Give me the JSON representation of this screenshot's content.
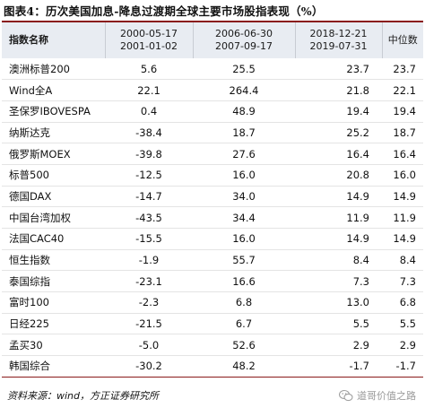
{
  "title": "图表4：历次美国加息-降息过渡期全球主要市场股指表现（%）",
  "headers": {
    "name": "指数名称",
    "periods": [
      {
        "start": "2000-05-17",
        "end": "2001-01-02"
      },
      {
        "start": "2006-06-30",
        "end": "2007-09-17"
      },
      {
        "start": "2018-12-21",
        "end": "2019-07-31"
      }
    ],
    "median": "中位数"
  },
  "rows": [
    {
      "name": "澳洲标普200",
      "v1": "5.6",
      "v2": "25.5",
      "v3": "23.7",
      "median": "23.7"
    },
    {
      "name": "Wind全A",
      "v1": "22.1",
      "v2": "264.4",
      "v3": "21.8",
      "median": "22.1"
    },
    {
      "name": "圣保罗IBOVESPA",
      "v1": "0.4",
      "v2": "48.9",
      "v3": "19.4",
      "median": "19.4"
    },
    {
      "name": "纳斯达克",
      "v1": "-38.4",
      "v2": "18.7",
      "v3": "25.2",
      "median": "18.7"
    },
    {
      "name": "俄罗斯MOEX",
      "v1": "-39.8",
      "v2": "27.6",
      "v3": "16.4",
      "median": "16.4"
    },
    {
      "name": "标普500",
      "v1": "-12.5",
      "v2": "16.0",
      "v3": "20.8",
      "median": "16.0"
    },
    {
      "name": "德国DAX",
      "v1": "-14.7",
      "v2": "34.0",
      "v3": "14.9",
      "median": "14.9"
    },
    {
      "name": "中国台湾加权",
      "v1": "-43.5",
      "v2": "34.4",
      "v3": "11.9",
      "median": "11.9"
    },
    {
      "name": "法国CAC40",
      "v1": "-15.5",
      "v2": "16.0",
      "v3": "14.9",
      "median": "14.9"
    },
    {
      "name": "恒生指数",
      "v1": "-1.9",
      "v2": "55.7",
      "v3": "8.4",
      "median": "8.4"
    },
    {
      "name": "泰国综指",
      "v1": "-23.1",
      "v2": "16.6",
      "v3": "7.3",
      "median": "7.3"
    },
    {
      "name": "富时100",
      "v1": "-2.3",
      "v2": "6.8",
      "v3": "13.0",
      "median": "6.8"
    },
    {
      "name": "日经225",
      "v1": "-21.5",
      "v2": "6.7",
      "v3": "5.5",
      "median": "5.5"
    },
    {
      "name": "孟买30",
      "v1": "-5.0",
      "v2": "52.6",
      "v3": "2.9",
      "median": "2.9"
    },
    {
      "name": "韩国综合",
      "v1": "-30.2",
      "v2": "48.2",
      "v3": "-1.7",
      "median": "-1.7"
    }
  ],
  "source": "资料来源：wind，方正证券研究所",
  "watermark": "道哥价值之路",
  "colors": {
    "accent_rule": "#8a1a1a",
    "header_bg": "#e8ecf2"
  }
}
